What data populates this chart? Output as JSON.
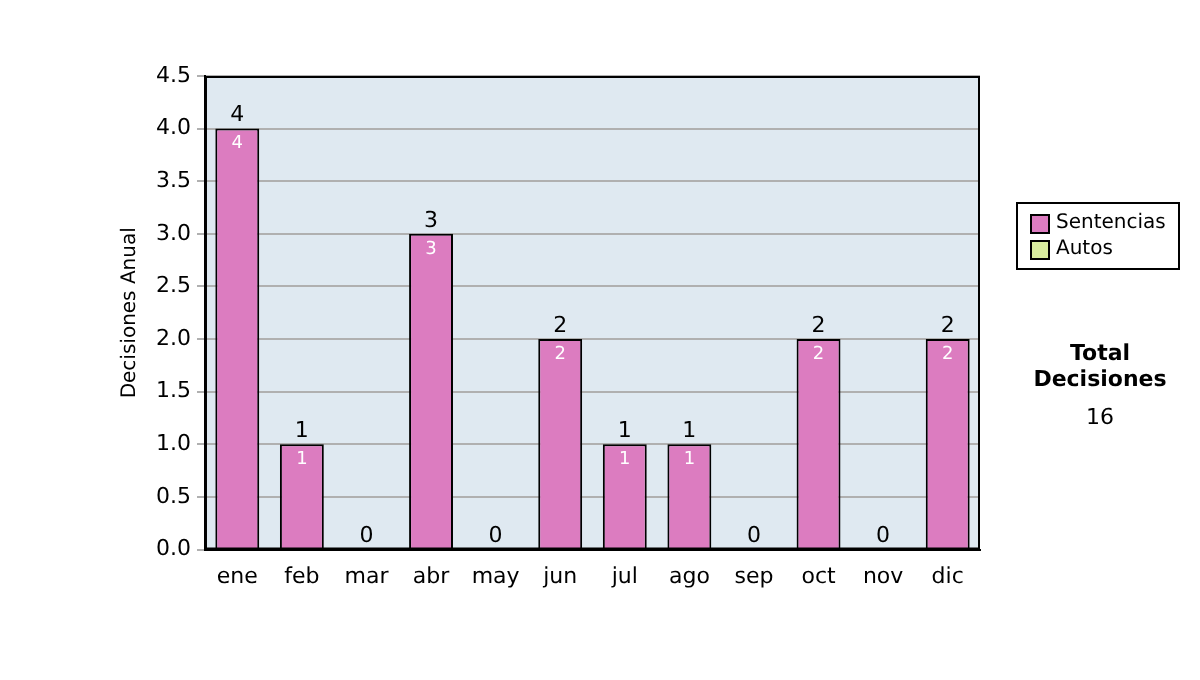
{
  "chart_data": {
    "type": "bar",
    "stacked": true,
    "ylabel": "Decisiones Anual",
    "categories": [
      "ene",
      "feb",
      "mar",
      "abr",
      "may",
      "jun",
      "jul",
      "ago",
      "sep",
      "oct",
      "nov",
      "dic"
    ],
    "series": [
      {
        "name": "Sentencias",
        "color": "#dc7cc0",
        "values": [
          4,
          1,
          0,
          3,
          0,
          2,
          1,
          1,
          0,
          2,
          0,
          2
        ],
        "value_labels": [
          "4",
          "1",
          null,
          "3",
          null,
          "2",
          "1",
          "1",
          null,
          "2",
          null,
          "2"
        ]
      },
      {
        "name": "Autos",
        "color": "#d8ec9e",
        "values": [
          0,
          0,
          0,
          0,
          0,
          0,
          0,
          0,
          0,
          0,
          0,
          0
        ]
      }
    ],
    "totals": [
      "4",
      "1",
      "0",
      "3",
      "0",
      "2",
      "1",
      "1",
      "0",
      "2",
      "0",
      "2"
    ],
    "ylim": [
      0,
      4.5
    ],
    "yticks": [
      {
        "value": 0,
        "label": "0.0"
      },
      {
        "value": 0.5,
        "label": "0.5"
      },
      {
        "value": 1,
        "label": "1.0"
      },
      {
        "value": 1.5,
        "label": "1.5"
      },
      {
        "value": 2,
        "label": "2.0"
      },
      {
        "value": 2.5,
        "label": "2.5"
      },
      {
        "value": 3,
        "label": "3.0"
      },
      {
        "value": 3.5,
        "label": "3.5"
      },
      {
        "value": 4,
        "label": "4.0"
      },
      {
        "value": 4.5,
        "label": "4.5"
      }
    ],
    "grid": "y",
    "legend": "right",
    "annotations": [
      "Total Decisiones",
      "16"
    ]
  }
}
